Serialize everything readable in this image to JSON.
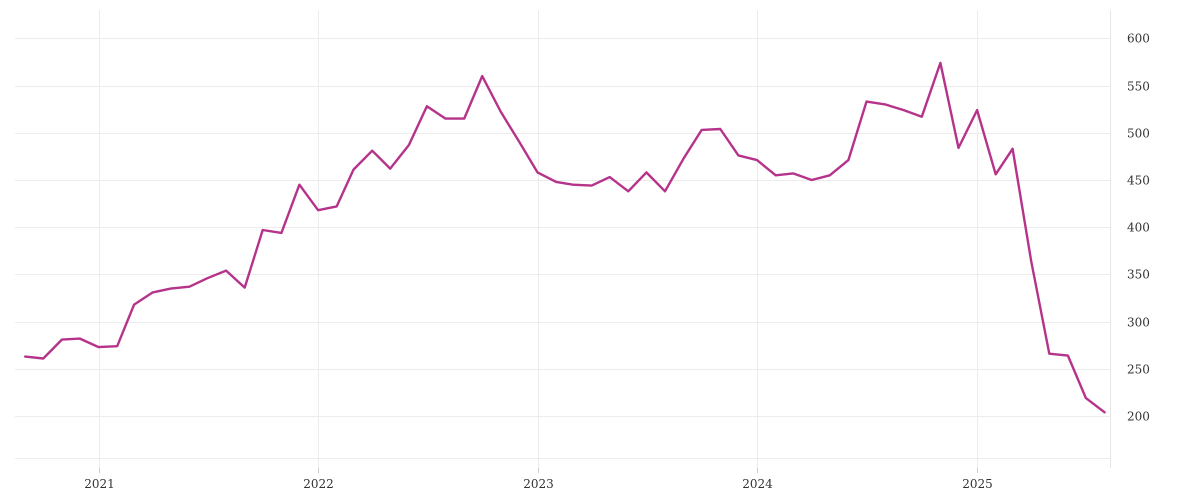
{
  "chart_data": {
    "type": "line",
    "title": "",
    "xlabel": "",
    "ylabel": "",
    "x_tick_labels": [
      "2021",
      "2022",
      "2023",
      "2024",
      "2025"
    ],
    "y_tick_labels": [
      "200",
      "250",
      "300",
      "350",
      "400",
      "450",
      "500",
      "550",
      "600"
    ],
    "y_ticks": [
      200,
      250,
      300,
      350,
      400,
      450,
      500,
      550,
      600
    ],
    "ylim": [
      145,
      630
    ],
    "xlim": [
      "2020-08-15",
      "2025-08-10"
    ],
    "grid": true,
    "y_axis_position": "right",
    "line_color": "#b5338a",
    "series": [
      {
        "x": [
          "2020-09-01",
          "2020-10-01",
          "2020-11-01",
          "2020-12-01",
          "2021-01-01",
          "2021-02-01",
          "2021-03-01",
          "2021-04-01",
          "2021-05-01",
          "2021-06-01",
          "2021-07-01",
          "2021-08-01",
          "2021-09-01",
          "2021-10-01",
          "2021-11-01",
          "2021-12-01",
          "2022-01-01",
          "2022-02-01",
          "2022-03-01",
          "2022-04-01",
          "2022-05-01",
          "2022-06-01",
          "2022-07-01",
          "2022-08-01",
          "2022-09-01",
          "2022-10-01",
          "2022-11-01",
          "2022-12-01",
          "2023-01-01",
          "2023-02-01",
          "2023-03-01",
          "2023-04-01",
          "2023-05-01",
          "2023-06-01",
          "2023-07-01",
          "2023-08-01",
          "2023-09-01",
          "2023-10-01",
          "2023-11-01",
          "2023-12-01",
          "2024-01-01",
          "2024-02-01",
          "2024-03-01",
          "2024-04-01",
          "2024-05-01",
          "2024-06-01",
          "2024-07-01",
          "2024-08-01",
          "2024-09-01",
          "2024-10-01",
          "2024-11-01",
          "2024-12-01",
          "2025-01-01",
          "2025-02-01",
          "2025-03-01",
          "2025-04-01",
          "2025-05-01",
          "2025-06-01",
          "2025-07-01",
          "2025-08-01"
        ],
        "values": [
          263,
          261,
          281,
          282,
          273,
          274,
          318,
          331,
          335,
          337,
          346,
          354,
          336,
          397,
          394,
          445,
          418,
          422,
          461,
          481,
          462,
          487,
          528,
          515,
          515,
          560,
          522,
          491,
          458,
          448,
          445,
          444,
          453,
          438,
          458,
          438,
          473,
          503,
          504,
          476,
          471,
          455,
          457,
          450,
          455,
          471,
          533,
          530,
          524,
          517,
          574,
          484,
          524,
          456,
          483,
          364,
          266,
          264,
          219,
          204
        ]
      }
    ]
  }
}
